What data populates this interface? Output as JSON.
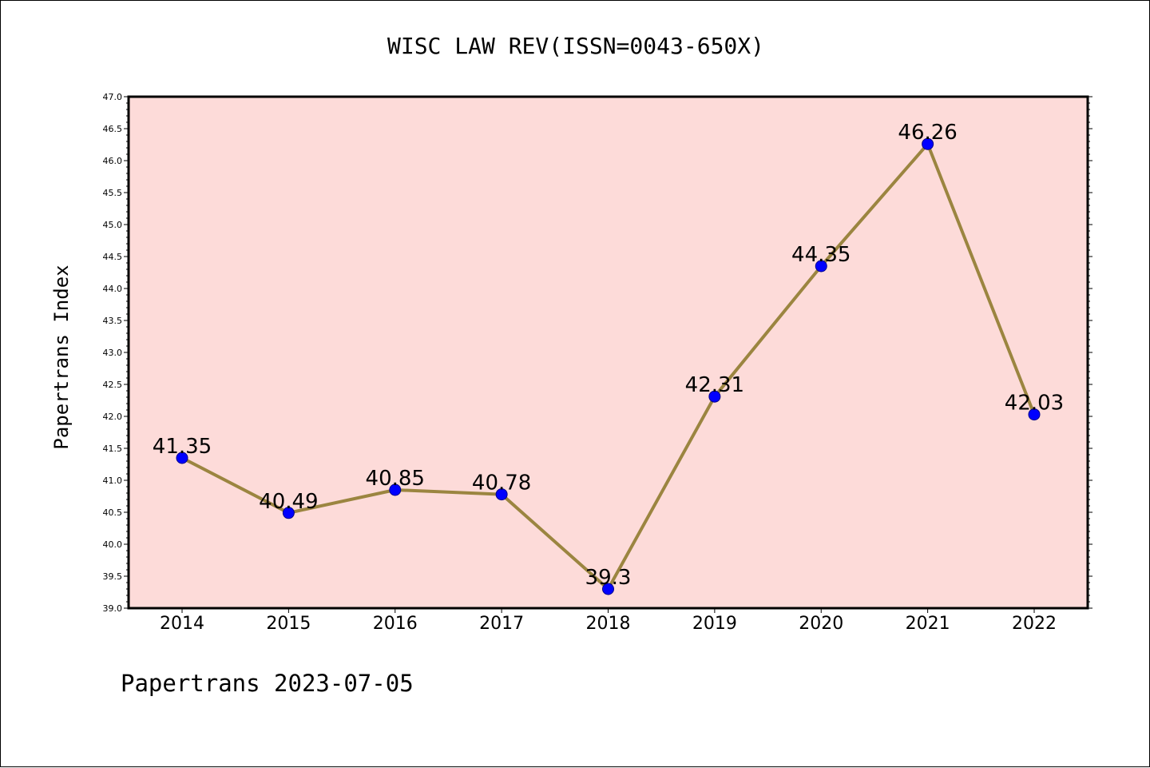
{
  "chart_data": {
    "type": "line",
    "title": "WISC LAW REV(ISSN=0043-650X)",
    "xlabel": "",
    "ylabel": "Papertrans Index",
    "categories": [
      "2014",
      "2015",
      "2016",
      "2017",
      "2018",
      "2019",
      "2020",
      "2021",
      "2022"
    ],
    "values": [
      41.35,
      40.49,
      40.85,
      40.78,
      39.3,
      42.31,
      44.35,
      46.26,
      42.03
    ],
    "data_labels": [
      "41.35",
      "40.49",
      "40.85",
      "40.78",
      "39.3",
      "42.31",
      "44.35",
      "46.26",
      "42.03"
    ],
    "ylim": [
      39.0,
      47.0
    ],
    "yticks": [
      "39.0",
      "39.5",
      "40.0",
      "40.5",
      "41.0",
      "41.5",
      "42.0",
      "42.5",
      "43.0",
      "43.5",
      "44.0",
      "44.5",
      "45.0",
      "45.5",
      "46.0",
      "46.5",
      "47.0"
    ],
    "grid": false,
    "legend": "none",
    "colors": {
      "plot_background": "#fddbd9",
      "line": "#9b8540",
      "marker": "#0000ff",
      "marker_edge": "#00008b",
      "axes": "#000000"
    }
  },
  "footer": {
    "text": "Papertrans 2023-07-05"
  }
}
